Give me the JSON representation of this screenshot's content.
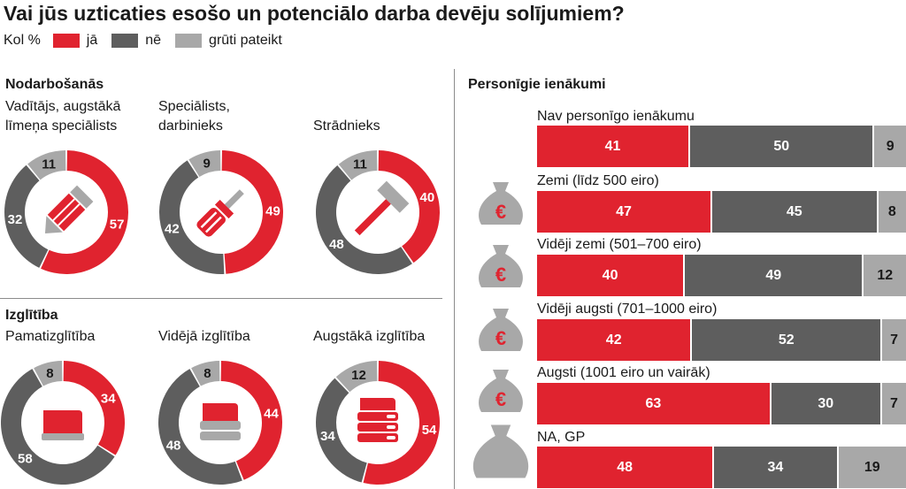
{
  "title": "Vai jūs uzticaties esošo un potenciālo darba devēju solījumiem?",
  "legend": {
    "unit": "Kol %",
    "items": [
      "jā",
      "nē",
      "grūti pateikt"
    ]
  },
  "colors": {
    "ja": "#e0232f",
    "ne": "#5e5e5e",
    "gp": "#a8a8a8"
  },
  "sections": {
    "occupation": "Nodarbošanās",
    "education": "Izglītība",
    "income": "Personīgie ienākumi"
  },
  "chart_data": [
    {
      "type": "pie",
      "group": "Nodarbošanās",
      "donuts": [
        {
          "label_lines": [
            "Vadītājs, augstākā",
            "līmeņa speciālists"
          ],
          "values": [
            57,
            32,
            11
          ],
          "icon": "pencil-icon"
        },
        {
          "label_lines": [
            "Speciālists,",
            "darbinieks"
          ],
          "values": [
            49,
            42,
            9
          ],
          "icon": "screwdriver-icon"
        },
        {
          "label_lines": [
            "Strādnieks"
          ],
          "values": [
            40,
            48,
            11
          ],
          "icon": "hammer-icon"
        }
      ]
    },
    {
      "type": "pie",
      "group": "Izglītība",
      "donuts": [
        {
          "label_lines": [
            "Pamatizglītība"
          ],
          "values": [
            34,
            58,
            8
          ],
          "icon": "book-icon"
        },
        {
          "label_lines": [
            "Vidējā izglītība"
          ],
          "values": [
            44,
            48,
            8
          ],
          "icon": "books-icon"
        },
        {
          "label_lines": [
            "Augstākā izglītība"
          ],
          "values": [
            54,
            34,
            12
          ],
          "icon": "book-stack-icon"
        }
      ]
    },
    {
      "type": "bar",
      "orientation": "horizontal-stacked",
      "group": "Personīgie ienākumi",
      "series": [
        "jā",
        "nē",
        "grūti pateikt"
      ],
      "categories": [
        "Nav personīgo ienākumu",
        "Zemi (līdz 500 eiro)",
        "Vidēji zemi (501–700 eiro)",
        "Vidēji augsti (701–1000 eiro)",
        "Augsti (1001 eiro un vairāk)",
        "NA, GP"
      ],
      "values": [
        [
          41,
          50,
          9
        ],
        [
          47,
          45,
          8
        ],
        [
          40,
          49,
          12
        ],
        [
          42,
          52,
          7
        ],
        [
          63,
          30,
          7
        ],
        [
          48,
          34,
          19
        ]
      ],
      "icons": [
        "",
        "money-bag-euro-icon",
        "money-bag-euro-icon",
        "money-bag-euro-icon",
        "money-bag-euro-icon",
        "money-bag-icon"
      ]
    }
  ]
}
